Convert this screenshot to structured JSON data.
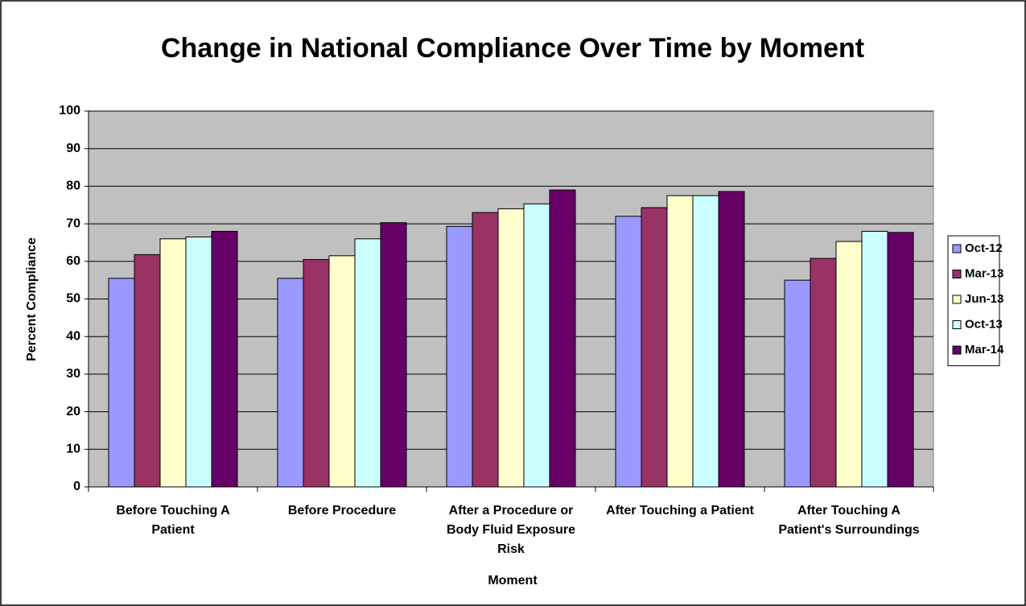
{
  "chart_data": {
    "type": "bar",
    "title": "Change in National Compliance Over Time by Moment",
    "x_label": "Moment",
    "y_label": "Percent Compliance",
    "categories": [
      "Before Touching A Patient",
      "Before Procedure",
      "After a Procedure or Body Fluid Exposure Risk",
      "After Touching a Patient",
      "After Touching A Patient's Surroundings"
    ],
    "series": [
      {
        "name": "Oct-12",
        "color": "#9999ff",
        "values": [
          55.5,
          55.5,
          69.3,
          72,
          55
        ]
      },
      {
        "name": "Mar-13",
        "color": "#993366",
        "values": [
          61.8,
          60.5,
          73,
          74.3,
          60.8
        ]
      },
      {
        "name": "Jun-13",
        "color": "#ffffcc",
        "values": [
          66,
          61.5,
          74,
          77.5,
          65.3
        ]
      },
      {
        "name": "Oct-13",
        "color": "#ccffff",
        "values": [
          66.5,
          66,
          75.3,
          77.5,
          68
        ]
      },
      {
        "name": "Mar-14",
        "color": "#660066",
        "values": [
          68,
          70.3,
          79,
          78.6,
          67.7
        ]
      }
    ],
    "ylim": [
      0,
      100
    ],
    "yticks": [
      0,
      10,
      20,
      30,
      40,
      50,
      60,
      70,
      80,
      90,
      100
    ],
    "grid": true,
    "legend": "right",
    "plot_background": "#c0c0c0"
  }
}
